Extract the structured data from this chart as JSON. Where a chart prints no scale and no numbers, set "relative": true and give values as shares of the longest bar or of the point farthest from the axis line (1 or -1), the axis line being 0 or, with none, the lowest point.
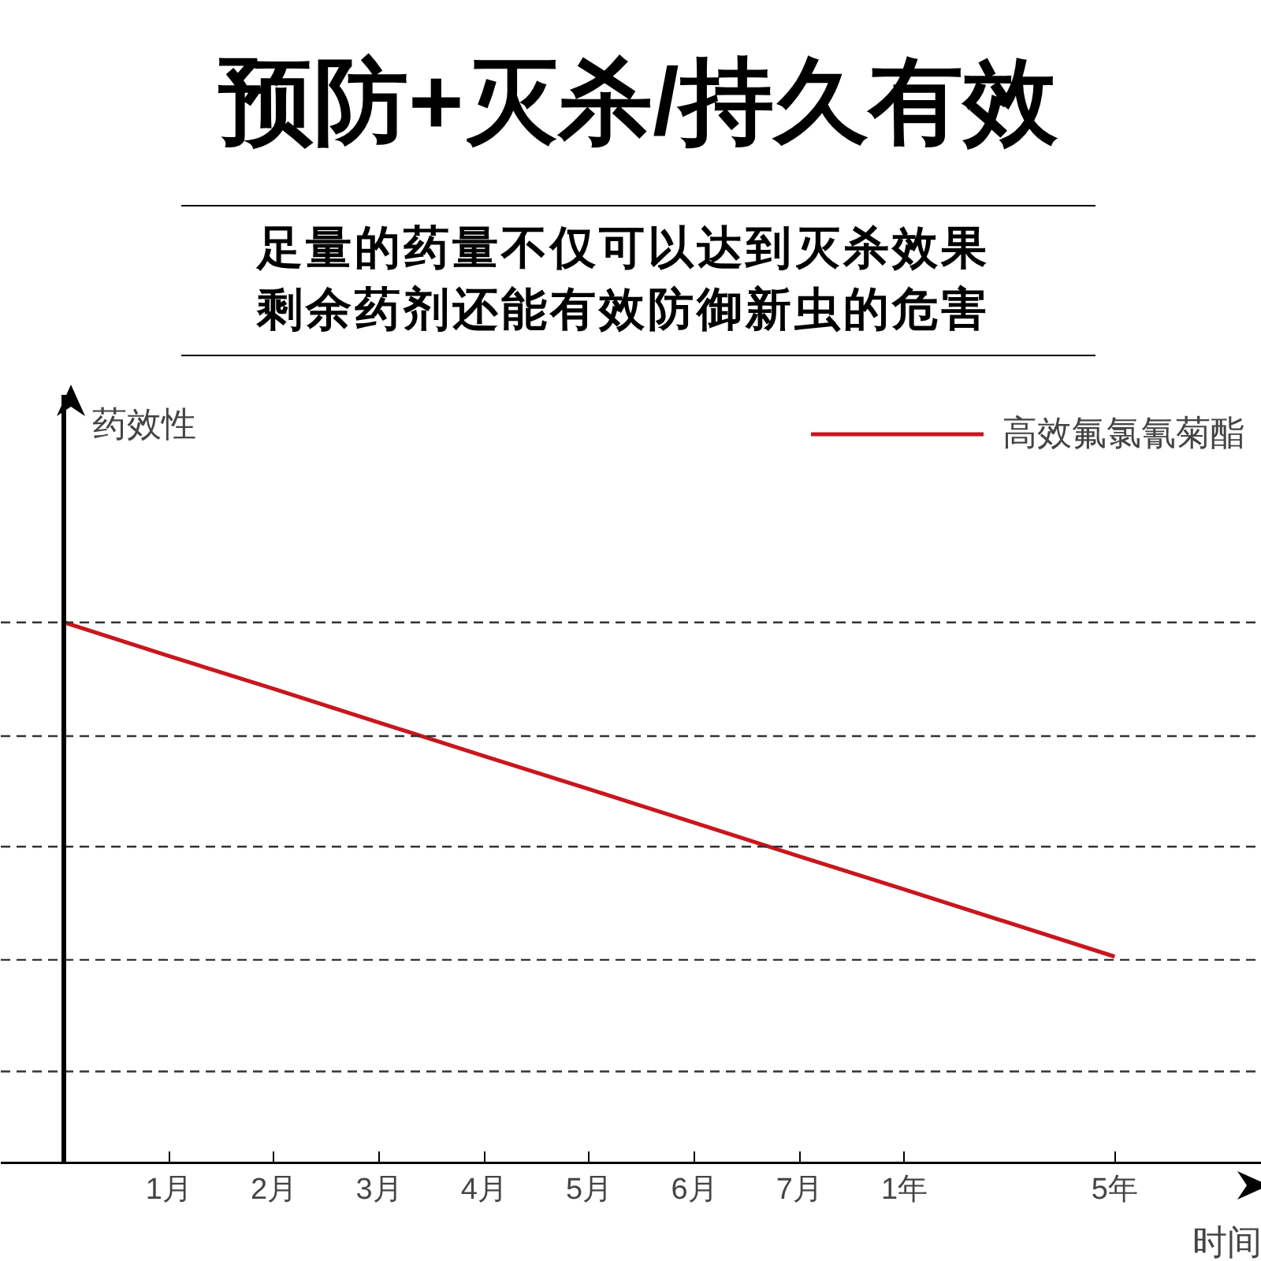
{
  "chart_data": {
    "type": "line",
    "title": "预防+灭杀/持久有效",
    "subtitle": "足量的药量不仅可以达到灭杀效果剩余药剂还能有效防御新虫的危害",
    "xlabel": "时间",
    "annotations": [
      "药效性"
    ],
    "categories": [
      null,
      "1月",
      "2月",
      "3月",
      "4月",
      "5月",
      "6月",
      "7月",
      "1年",
      null,
      "5年"
    ],
    "series": [
      {
        "name": "高效氟氯氰菊酯",
        "color": "#c8161d",
        "values": [
          1,
          0.938,
          0.877,
          0.815,
          0.753,
          0.692,
          0.63,
          0.568,
          0.507,
          0.445,
          0.383
        ]
      }
    ],
    "relative": true,
    "ref_lines": [
      {
        "axis": "y",
        "value": 0.171,
        "line_style": "dashed",
        "color": "#333333"
      },
      {
        "axis": "y",
        "value": 0.377,
        "line_style": "dashed",
        "color": "#333333"
      },
      {
        "axis": "y",
        "value": 0.586,
        "line_style": "dashed",
        "color": "#333333"
      },
      {
        "axis": "y",
        "value": 0.79,
        "line_style": "dashed",
        "color": "#333333"
      },
      {
        "axis": "y",
        "value": 1,
        "line_style": "dashed",
        "color": "#333333"
      }
    ],
    "legend": "top right",
    "line_style": "solid",
    "marker": "none"
  }
}
